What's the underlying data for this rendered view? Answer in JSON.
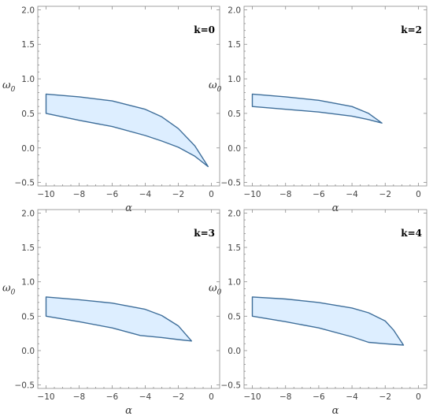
{
  "chart_data": [
    {
      "type": "area",
      "panel_label": "k=0",
      "xlabel": "α",
      "ylabel_main": "ω",
      "ylabel_sub": "0",
      "xlim": [
        -10.5,
        0.5
      ],
      "ylim": [
        -0.55,
        2.05
      ],
      "xticks": [
        -10,
        -8,
        -6,
        -4,
        -2,
        0
      ],
      "xtick_labels": [
        "−10",
        "−8",
        "−6",
        "−4",
        "−2",
        "0"
      ],
      "yticks": [
        -0.5,
        0.0,
        0.5,
        1.0,
        1.5,
        2.0
      ],
      "ytick_labels": [
        "−0.5",
        "0.0",
        "0.5",
        "1.0",
        "1.5",
        "2.0"
      ],
      "region": {
        "upper": [
          [
            -10,
            0.78
          ],
          [
            -8,
            0.74
          ],
          [
            -6,
            0.68
          ],
          [
            -4,
            0.56
          ],
          [
            -3,
            0.45
          ],
          [
            -2,
            0.28
          ],
          [
            -1,
            0.03
          ],
          [
            -0.2,
            -0.27
          ]
        ],
        "lower": [
          [
            -10,
            0.5
          ],
          [
            -8,
            0.4
          ],
          [
            -6,
            0.31
          ],
          [
            -4,
            0.18
          ],
          [
            -3,
            0.1
          ],
          [
            -2,
            0.01
          ],
          [
            -1,
            -0.12
          ],
          [
            -0.2,
            -0.27
          ]
        ]
      }
    },
    {
      "type": "area",
      "panel_label": "k=2",
      "xlabel": "α",
      "ylabel_main": "ω",
      "ylabel_sub": "0",
      "xlim": [
        -10.5,
        0.5
      ],
      "ylim": [
        -0.55,
        2.05
      ],
      "xticks": [
        -10,
        -8,
        -6,
        -4,
        -2,
        0
      ],
      "xtick_labels": [
        "−10",
        "−8",
        "−6",
        "−4",
        "−2",
        "0"
      ],
      "yticks": [
        -0.5,
        0.0,
        0.5,
        1.0,
        1.5,
        2.0
      ],
      "ytick_labels": [
        "−0.5",
        "0.0",
        "0.5",
        "1.0",
        "1.5",
        "2.0"
      ],
      "region": {
        "upper": [
          [
            -10,
            0.78
          ],
          [
            -8,
            0.74
          ],
          [
            -6,
            0.69
          ],
          [
            -4,
            0.6
          ],
          [
            -3,
            0.5
          ],
          [
            -2.2,
            0.36
          ]
        ],
        "lower": [
          [
            -10,
            0.6
          ],
          [
            -8,
            0.56
          ],
          [
            -6,
            0.52
          ],
          [
            -4,
            0.46
          ],
          [
            -3,
            0.41
          ],
          [
            -2.2,
            0.36
          ]
        ]
      }
    },
    {
      "type": "area",
      "panel_label": "k=3",
      "xlabel": "α",
      "ylabel_main": "ω",
      "ylabel_sub": "0",
      "xlim": [
        -10.5,
        0.5
      ],
      "ylim": [
        -0.55,
        2.05
      ],
      "xticks": [
        -10,
        -8,
        -6,
        -4,
        -2,
        0
      ],
      "xtick_labels": [
        "−10",
        "−8",
        "−6",
        "−4",
        "−2",
        "0"
      ],
      "yticks": [
        -0.5,
        0.0,
        0.5,
        1.0,
        1.5,
        2.0
      ],
      "ytick_labels": [
        "−0.5",
        "0.0",
        "0.5",
        "1.0",
        "1.5",
        "2.0"
      ],
      "region": {
        "upper": [
          [
            -10,
            0.78
          ],
          [
            -8,
            0.74
          ],
          [
            -6,
            0.69
          ],
          [
            -4,
            0.6
          ],
          [
            -3,
            0.51
          ],
          [
            -2,
            0.36
          ],
          [
            -1.2,
            0.14
          ]
        ],
        "lower": [
          [
            -10,
            0.5
          ],
          [
            -8,
            0.42
          ],
          [
            -6,
            0.33
          ],
          [
            -4.3,
            0.22
          ],
          [
            -3,
            0.19
          ],
          [
            -2,
            0.16
          ],
          [
            -1.2,
            0.14
          ]
        ]
      }
    },
    {
      "type": "area",
      "panel_label": "k=4",
      "xlabel": "α",
      "ylabel_main": "ω",
      "ylabel_sub": "0",
      "xlim": [
        -10.5,
        0.5
      ],
      "ylim": [
        -0.55,
        2.05
      ],
      "xticks": [
        -10,
        -8,
        -6,
        -4,
        -2,
        0
      ],
      "xtick_labels": [
        "−10",
        "−8",
        "−6",
        "−4",
        "−2",
        "0"
      ],
      "yticks": [
        -0.5,
        0.0,
        0.5,
        1.0,
        1.5,
        2.0
      ],
      "ytick_labels": [
        "−0.5",
        "0.0",
        "0.5",
        "1.0",
        "1.5",
        "2.0"
      ],
      "region": {
        "upper": [
          [
            -10,
            0.78
          ],
          [
            -8,
            0.75
          ],
          [
            -6,
            0.7
          ],
          [
            -4,
            0.62
          ],
          [
            -3,
            0.55
          ],
          [
            -2,
            0.43
          ],
          [
            -1.5,
            0.3
          ],
          [
            -0.9,
            0.08
          ]
        ],
        "lower": [
          [
            -10,
            0.5
          ],
          [
            -8,
            0.42
          ],
          [
            -6,
            0.33
          ],
          [
            -4,
            0.2
          ],
          [
            -3,
            0.12
          ],
          [
            -2,
            0.1
          ],
          [
            -0.9,
            0.08
          ]
        ]
      }
    }
  ],
  "colors": {
    "fill": "#ddeeff",
    "stroke": "#3e6e9a",
    "frame": "#8c8c8c"
  }
}
